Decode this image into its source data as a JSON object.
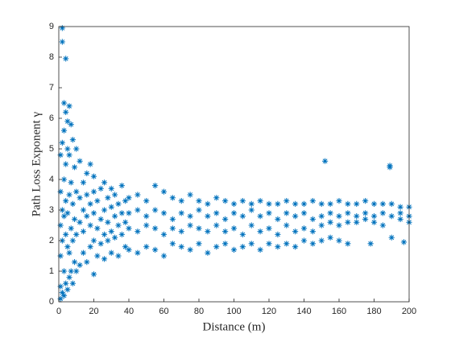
{
  "chart_data": {
    "type": "scatter",
    "color": "#0072bd",
    "xlabel": "Distance (m)",
    "ylabel": "Path Loss Exponent γ",
    "xlim": [
      0,
      200
    ],
    "ylim": [
      0,
      9
    ],
    "xticks": [
      0,
      20,
      40,
      60,
      80,
      100,
      120,
      140,
      160,
      180,
      200
    ],
    "yticks": [
      0,
      1,
      2,
      3,
      4,
      5,
      6,
      7,
      8,
      9
    ],
    "grid": false,
    "x": [
      1,
      1,
      1,
      1,
      1,
      1,
      2,
      2,
      2,
      2,
      2,
      2,
      3,
      3,
      3,
      3,
      3,
      3,
      4,
      4,
      4,
      4,
      4,
      4,
      5,
      5,
      5,
      5,
      5,
      6,
      6,
      6,
      6,
      6,
      7,
      7,
      7,
      7,
      8,
      8,
      8,
      8,
      9,
      9,
      9,
      10,
      10,
      10,
      10,
      12,
      12,
      12,
      12,
      14,
      14,
      14,
      14,
      16,
      16,
      16,
      16,
      18,
      18,
      18,
      18,
      20,
      20,
      20,
      20,
      20,
      22,
      22,
      22,
      24,
      24,
      24,
      26,
      26,
      26,
      26,
      28,
      28,
      28,
      30,
      30,
      30,
      30,
      32,
      32,
      32,
      34,
      34,
      34,
      36,
      36,
      36,
      38,
      38,
      38,
      40,
      40,
      40,
      40,
      45,
      45,
      45,
      45,
      50,
      50,
      50,
      50,
      55,
      55,
      55,
      55,
      60,
      60,
      60,
      60,
      65,
      65,
      65,
      65,
      70,
      70,
      70,
      70,
      75,
      75,
      75,
      75,
      80,
      80,
      80,
      80,
      85,
      85,
      85,
      85,
      90,
      90,
      90,
      90,
      95,
      95,
      95,
      95,
      100,
      100,
      100,
      100,
      105,
      105,
      105,
      105,
      110,
      110,
      110,
      110,
      115,
      115,
      115,
      115,
      120,
      120,
      120,
      120,
      125,
      125,
      125,
      125,
      130,
      130,
      130,
      130,
      135,
      135,
      135,
      135,
      140,
      140,
      140,
      140,
      145,
      145,
      145,
      145,
      150,
      150,
      150,
      150,
      155,
      155,
      155,
      155,
      160,
      160,
      160,
      160,
      165,
      165,
      165,
      165,
      170,
      170,
      170,
      175,
      175,
      175,
      180,
      180,
      180,
      185,
      185,
      185,
      190,
      190,
      190,
      195,
      195,
      195,
      200,
      200,
      200,
      152,
      189,
      189,
      178,
      197
    ],
    "values": [
      0.1,
      0.5,
      1.5,
      2.5,
      3.6,
      4.8,
      8.95,
      8.5,
      0.3,
      2.0,
      3.0,
      5.2,
      6.5,
      0.2,
      1.0,
      2.8,
      4.0,
      5.6,
      7.95,
      0.6,
      2.2,
      3.3,
      4.5,
      6.2,
      0.4,
      1.8,
      2.9,
      5.0,
      5.9,
      6.4,
      0.8,
      1.6,
      3.5,
      4.8,
      1.0,
      2.4,
      3.9,
      5.8,
      0.6,
      2.0,
      3.2,
      5.3,
      1.3,
      2.7,
      4.4,
      1.0,
      2.2,
      3.6,
      5.0,
      1.2,
      2.6,
      3.4,
      4.6,
      1.6,
      2.3,
      3.0,
      3.9,
      1.3,
      2.8,
      3.5,
      4.2,
      1.8,
      2.5,
      3.2,
      4.5,
      0.9,
      2.0,
      2.9,
      3.6,
      4.1,
      1.5,
      2.4,
      3.3,
      1.9,
      2.7,
      3.7,
      1.4,
      2.2,
      3.0,
      3.9,
      2.0,
      2.6,
      3.4,
      1.6,
      2.3,
      3.1,
      3.7,
      2.1,
      2.8,
      3.5,
      1.5,
      2.5,
      3.2,
      2.2,
      2.9,
      3.8,
      1.8,
      2.6,
      3.3,
      3.4,
      2.9,
      2.4,
      1.7,
      3.5,
      3.0,
      2.3,
      1.6,
      3.3,
      2.8,
      2.5,
      1.8,
      3.8,
      3.0,
      2.4,
      1.7,
      3.6,
      2.9,
      2.2,
      1.5,
      3.4,
      2.7,
      2.4,
      1.9,
      3.3,
      2.9,
      2.3,
      1.8,
      3.5,
      2.8,
      2.5,
      1.7,
      3.3,
      3.0,
      2.4,
      1.9,
      3.2,
      2.8,
      2.3,
      1.6,
      3.4,
      2.9,
      2.5,
      1.8,
      3.3,
      2.7,
      2.3,
      1.9,
      3.2,
      2.9,
      2.4,
      1.7,
      3.3,
      2.8,
      2.2,
      1.8,
      3.2,
      3.0,
      2.5,
      1.9,
      3.3,
      2.8,
      2.3,
      1.7,
      3.2,
      2.9,
      2.4,
      1.9,
      3.2,
      2.7,
      2.2,
      1.8,
      3.3,
      2.9,
      2.5,
      1.9,
      3.2,
      2.8,
      2.3,
      1.8,
      3.2,
      2.9,
      2.4,
      2.0,
      3.3,
      2.7,
      2.3,
      1.9,
      3.2,
      2.8,
      2.5,
      2.0,
      3.2,
      2.9,
      2.6,
      2.1,
      3.3,
      2.8,
      2.5,
      2.0,
      3.2,
      2.9,
      2.6,
      1.9,
      3.2,
      2.8,
      2.6,
      3.3,
      2.9,
      2.7,
      3.2,
      2.8,
      2.6,
      3.2,
      2.9,
      2.5,
      3.2,
      2.8,
      2.1,
      3.1,
      2.9,
      2.7,
      3.1,
      2.8,
      2.6,
      4.6,
      4.45,
      4.4,
      1.9,
      1.95
    ]
  }
}
